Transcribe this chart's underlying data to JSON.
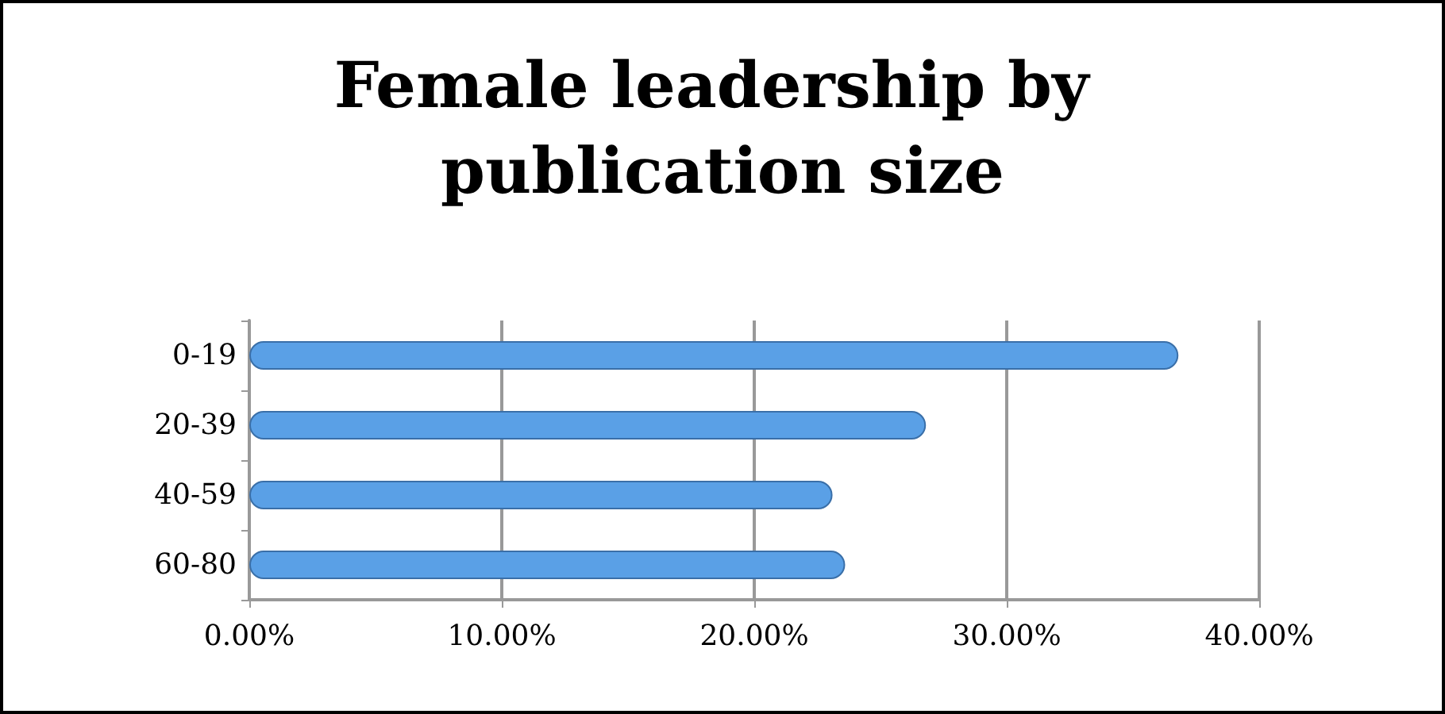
{
  "chart_data": {
    "type": "bar",
    "orientation": "horizontal",
    "title": "Female leadership by publication size",
    "categories": [
      "0-19",
      "20-39",
      "40-59",
      "60-80"
    ],
    "values": [
      0.368,
      0.268,
      0.231,
      0.236
    ],
    "color": "#5aa0e6",
    "xlim": [
      0,
      0.4
    ],
    "xticks": [
      {
        "value": 0,
        "label": "0.00%"
      },
      {
        "value": 0.1,
        "label": "10.00%"
      },
      {
        "value": 0.2,
        "label": "20.00%"
      },
      {
        "value": 0.3,
        "label": "30.00%"
      },
      {
        "value": 0.4,
        "label": "40.00%"
      }
    ],
    "grid": "x"
  }
}
